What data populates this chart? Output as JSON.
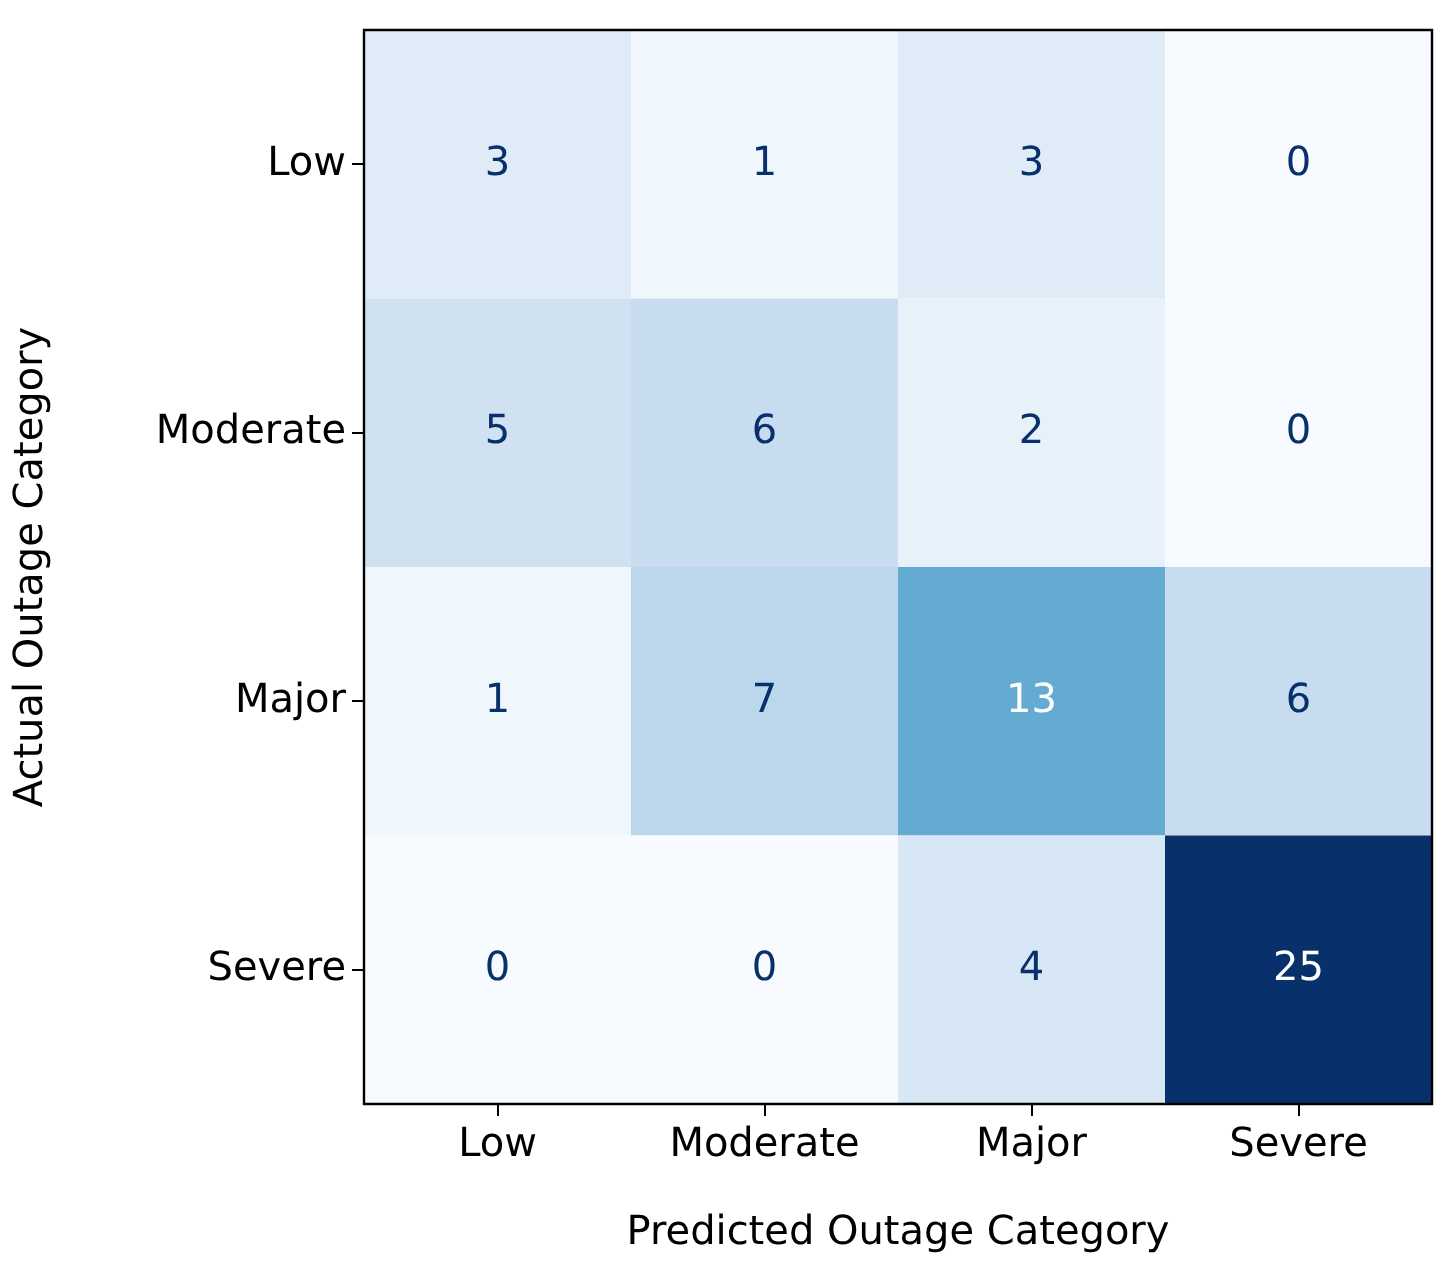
{
  "chart_data": {
    "type": "heatmap",
    "xlabel": "Predicted Outage Category",
    "ylabel": "Actual Outage Category",
    "categories": [
      "Low",
      "Moderate",
      "Major",
      "Severe"
    ],
    "y_categories": [
      "Low",
      "Moderate",
      "Major",
      "Severe"
    ],
    "cells": [
      [
        3,
        1,
        3,
        0
      ],
      [
        5,
        6,
        2,
        0
      ],
      [
        1,
        7,
        13,
        6
      ],
      [
        0,
        0,
        4,
        25
      ]
    ],
    "data_labels": true,
    "grid": false,
    "legend": false
  }
}
